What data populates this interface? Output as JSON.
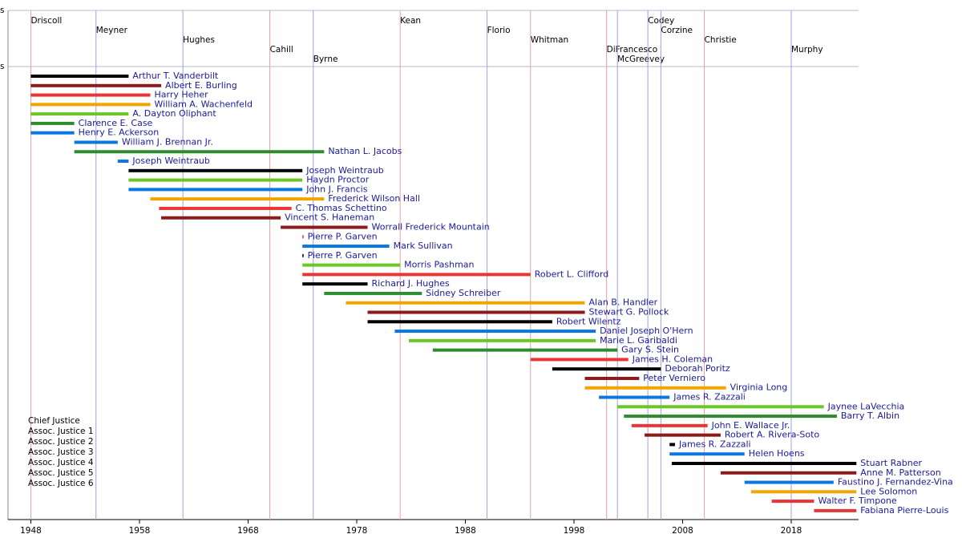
{
  "chart_data": {
    "type": "timeline",
    "band_labels": [
      "s",
      "s"
    ],
    "xlim": [
      1945.9,
      2024.2
    ],
    "xticks": [
      1948,
      1958,
      1968,
      1978,
      1988,
      1998,
      2008,
      2018
    ],
    "governors": [
      {
        "name": "Driscoll",
        "year": 1948,
        "color": "#e8a0a0"
      },
      {
        "name": "Meyner",
        "year": 1954,
        "color": "#a0a0e0"
      },
      {
        "name": "Hughes",
        "year": 1962,
        "color": "#a0a0e0"
      },
      {
        "name": "Cahill",
        "year": 1970,
        "color": "#e8a0a0"
      },
      {
        "name": "Byrne",
        "year": 1974,
        "color": "#a0a0e0"
      },
      {
        "name": "Kean",
        "year": 1982,
        "color": "#e8a0a0"
      },
      {
        "name": "Florio",
        "year": 1990,
        "color": "#a0a0e0"
      },
      {
        "name": "Whitman",
        "year": 1994,
        "color": "#e8a0a0"
      },
      {
        "name": "DiFrancesco",
        "year": 2001,
        "color": "#e8a0a0"
      },
      {
        "name": "McGreevey",
        "year": 2002,
        "color": "#a0a0e0"
      },
      {
        "name": "Codey",
        "year": 2004.8,
        "color": "#a0a0e0"
      },
      {
        "name": "Corzine",
        "year": 2006,
        "color": "#a0a0e0"
      },
      {
        "name": "Christie",
        "year": 2010,
        "color": "#e8a0a0"
      },
      {
        "name": "Murphy",
        "year": 2018,
        "color": "#a0a0e0"
      }
    ],
    "seats": [
      {
        "name": "Chief Justice",
        "color": "#000000"
      },
      {
        "name": "Assoc. Justice 1",
        "color": "#8b1a1a"
      },
      {
        "name": "Assoc. Justice 2",
        "color": "#e83535"
      },
      {
        "name": "Assoc. Justice 3",
        "color": "#f0a500"
      },
      {
        "name": "Assoc. Justice 4",
        "color": "#6cc724"
      },
      {
        "name": "Assoc. Justice 5",
        "color": "#2e8b2e"
      },
      {
        "name": "Assoc. Justice 6",
        "color": "#0a78e0"
      }
    ],
    "justices": [
      {
        "name": "Arthur T. Vanderbilt",
        "seat": 0,
        "start": 1948,
        "end": 1957
      },
      {
        "name": "Albert E. Burling",
        "seat": 1,
        "start": 1948,
        "end": 1960
      },
      {
        "name": "Harry Heher",
        "seat": 2,
        "start": 1948,
        "end": 1959
      },
      {
        "name": "William A. Wachenfeld",
        "seat": 3,
        "start": 1948,
        "end": 1959
      },
      {
        "name": "A. Dayton Oliphant",
        "seat": 4,
        "start": 1948,
        "end": 1957
      },
      {
        "name": "Clarence E. Case",
        "seat": 5,
        "start": 1948,
        "end": 1952
      },
      {
        "name": "Henry E. Ackerson",
        "seat": 6,
        "start": 1948,
        "end": 1952
      },
      {
        "name": "William J. Brennan Jr.",
        "seat": 6,
        "start": 1952,
        "end": 1956
      },
      {
        "name": "Nathan L. Jacobs",
        "seat": 5,
        "start": 1952,
        "end": 1975
      },
      {
        "name": "Joseph Weintraub",
        "seat": 6,
        "start": 1956,
        "end": 1957
      },
      {
        "name": "Joseph Weintraub",
        "seat": 0,
        "start": 1957,
        "end": 1973
      },
      {
        "name": "Haydn Proctor",
        "seat": 4,
        "start": 1957,
        "end": 1973
      },
      {
        "name": "John J. Francis",
        "seat": 6,
        "start": 1957,
        "end": 1973
      },
      {
        "name": "Frederick Wilson Hall",
        "seat": 3,
        "start": 1959,
        "end": 1975
      },
      {
        "name": "C. Thomas Schettino",
        "seat": 2,
        "start": 1959.8,
        "end": 1972
      },
      {
        "name": "Vincent S. Haneman",
        "seat": 1,
        "start": 1960,
        "end": 1971
      },
      {
        "name": "Worrall Frederick Mountain",
        "seat": 1,
        "start": 1971,
        "end": 1979
      },
      {
        "name": "Pierre P. Garven",
        "seat": 2,
        "start": 1973,
        "end": 1973.1
      },
      {
        "name": "Mark Sullivan",
        "seat": 6,
        "start": 1973,
        "end": 1981
      },
      {
        "name": "Pierre P. Garven",
        "seat": 0,
        "start": 1973,
        "end": 1973.1
      },
      {
        "name": "Morris Pashman",
        "seat": 4,
        "start": 1973,
        "end": 1982
      },
      {
        "name": "Robert L. Clifford",
        "seat": 2,
        "start": 1973,
        "end": 1994
      },
      {
        "name": "Richard J. Hughes",
        "seat": 0,
        "start": 1973,
        "end": 1979
      },
      {
        "name": "Sidney Schreiber",
        "seat": 5,
        "start": 1975,
        "end": 1984
      },
      {
        "name": "Alan B. Handler",
        "seat": 3,
        "start": 1977,
        "end": 1999
      },
      {
        "name": "Stewart G. Pollock",
        "seat": 1,
        "start": 1979,
        "end": 1999
      },
      {
        "name": "Robert Wilentz",
        "seat": 0,
        "start": 1979,
        "end": 1996
      },
      {
        "name": "Daniel Joseph O'Hern",
        "seat": 6,
        "start": 1981.5,
        "end": 2000
      },
      {
        "name": "Marie L. Garibaldi",
        "seat": 4,
        "start": 1982.8,
        "end": 2000
      },
      {
        "name": "Gary S. Stein",
        "seat": 5,
        "start": 1985,
        "end": 2002
      },
      {
        "name": "James H. Coleman",
        "seat": 2,
        "start": 1994,
        "end": 2003
      },
      {
        "name": "Deborah Poritz",
        "seat": 0,
        "start": 1996,
        "end": 2006
      },
      {
        "name": "Peter Verniero",
        "seat": 1,
        "start": 1999,
        "end": 2004
      },
      {
        "name": "Virginia Long",
        "seat": 3,
        "start": 1999,
        "end": 2012
      },
      {
        "name": "James R. Zazzali",
        "seat": 6,
        "start": 2000.3,
        "end": 2006.8
      },
      {
        "name": "Jaynee LaVecchia",
        "seat": 4,
        "start": 2002,
        "end": 2021
      },
      {
        "name": "Barry T. Albin",
        "seat": 5,
        "start": 2002.6,
        "end": 2022.2
      },
      {
        "name": "John E. Wallace Jr.",
        "seat": 2,
        "start": 2003.3,
        "end": 2010.3
      },
      {
        "name": "Robert A. Rivera-Soto",
        "seat": 1,
        "start": 2004.5,
        "end": 2011.5
      },
      {
        "name": "James R. Zazzali",
        "seat": 0,
        "start": 2006.8,
        "end": 2007.3
      },
      {
        "name": "Helen Hoens",
        "seat": 6,
        "start": 2006.8,
        "end": 2013.7
      },
      {
        "name": "Stuart Rabner",
        "seat": 0,
        "start": 2007,
        "end": 2024
      },
      {
        "name": "Anne M. Patterson",
        "seat": 1,
        "start": 2011.5,
        "end": 2024
      },
      {
        "name": "Faustino J. Fernandez-Vina",
        "seat": 6,
        "start": 2013.7,
        "end": 2021.9
      },
      {
        "name": "Lee Solomon",
        "seat": 3,
        "start": 2014.3,
        "end": 2024
      },
      {
        "name": "Walter F. Timpone",
        "seat": 2,
        "start": 2016.2,
        "end": 2020.1
      },
      {
        "name": "Fabiana Pierre-Louis",
        "seat": 2,
        "start": 2020.1,
        "end": 2024
      }
    ]
  }
}
